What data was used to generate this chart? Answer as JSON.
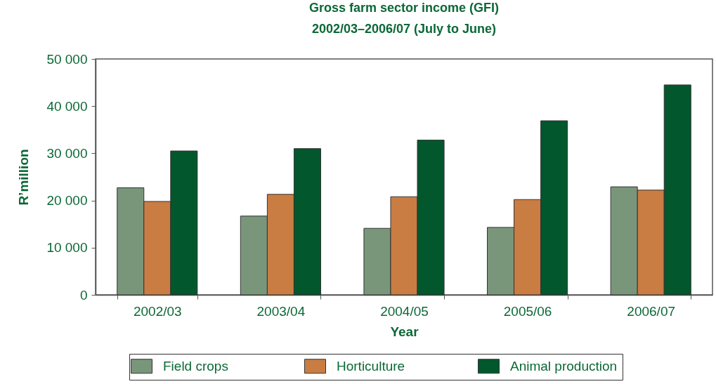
{
  "chart_data": {
    "type": "bar",
    "title": "Gross farm sector income (GFI)",
    "subtitle": "2002/03–2006/07 (July to June)",
    "xlabel": "Year",
    "ylabel": "R’million",
    "categories": [
      "2002/03",
      "2003/04",
      "2004/05",
      "2005/06",
      "2006/07"
    ],
    "series": [
      {
        "name": "Field crops",
        "color": "#79967b",
        "values": [
          22700,
          16700,
          14100,
          14300,
          22900
        ]
      },
      {
        "name": "Horticulture",
        "color": "#c97d43",
        "values": [
          19800,
          21300,
          20800,
          20200,
          22200
        ]
      },
      {
        "name": "Animal production",
        "color": "#02572d",
        "values": [
          30500,
          31000,
          32800,
          36900,
          44500
        ]
      }
    ],
    "ylim": [
      0,
      50000
    ],
    "yticks": [
      0,
      {
        "value": 10000,
        "label": "10 000"
      },
      {
        "value": 20000,
        "label": "20 000"
      },
      {
        "value": 30000,
        "label": "30 000"
      },
      {
        "value": 40000,
        "label": "40 000"
      },
      {
        "value": 50000,
        "label": "50 000"
      }
    ],
    "grid": false,
    "legend": "bottom"
  }
}
